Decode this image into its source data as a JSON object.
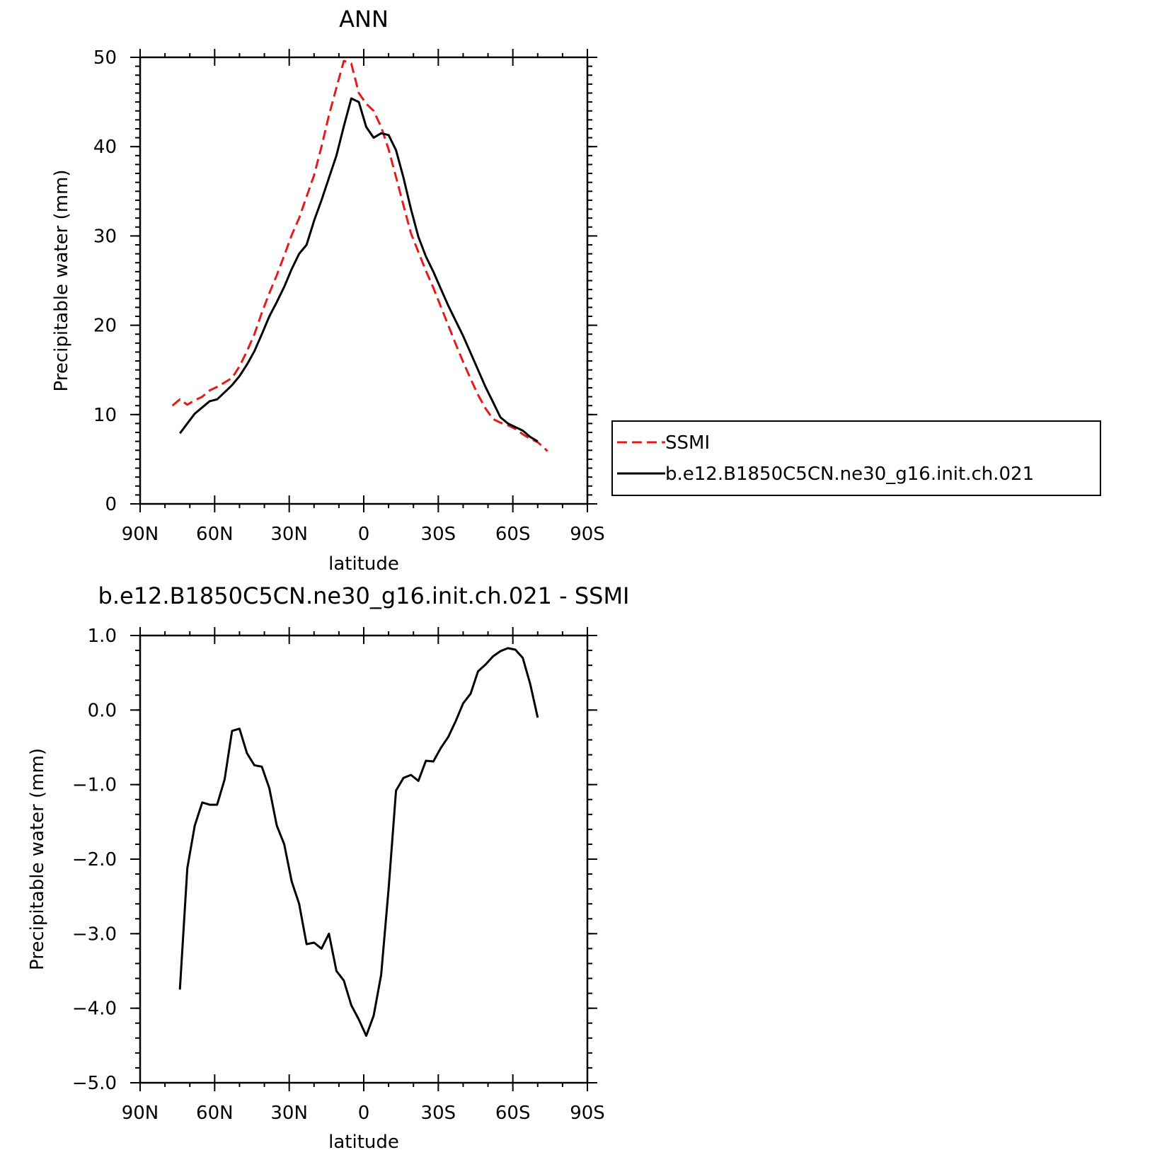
{
  "chart_data": [
    {
      "type": "line",
      "title": "ANN",
      "xlabel": "latitude",
      "ylabel": "Precipitable water (mm)",
      "xlim": [
        90,
        -90
      ],
      "ylim": [
        0,
        50
      ],
      "x_ticks": [
        90,
        60,
        30,
        0,
        -30,
        -60,
        -90
      ],
      "x_tick_labels": [
        "90N",
        "60N",
        "30N",
        "0",
        "30S",
        "60S",
        "90S"
      ],
      "y_ticks": [
        0,
        10,
        20,
        30,
        40,
        50
      ],
      "y_tick_labels": [
        "0",
        "10",
        "20",
        "30",
        "40",
        "50"
      ],
      "legend": "outside-right",
      "series": [
        {
          "name": "SSMI",
          "color": "#e41a1c",
          "style": "dashed",
          "x": [
            77,
            74,
            71,
            68,
            65,
            62,
            59,
            56,
            53,
            50,
            47,
            44,
            41,
            38,
            35,
            32,
            29,
            26,
            23,
            20,
            17,
            14,
            11,
            8,
            5,
            2,
            -1,
            -4,
            -7,
            -10,
            -13,
            -16,
            -19,
            -22,
            -25,
            -28,
            -31,
            -34,
            -37,
            -40,
            -43,
            -46,
            -49,
            -52,
            -55,
            -58,
            -61,
            -64,
            -67,
            -70,
            -74
          ],
          "values": [
            11.0,
            11.7,
            11.1,
            11.6,
            12.0,
            12.7,
            13.1,
            13.6,
            14.1,
            15.4,
            17.1,
            19.0,
            21.4,
            23.6,
            25.6,
            27.8,
            30.1,
            32.0,
            34.4,
            36.8,
            40.0,
            43.5,
            46.6,
            49.6,
            49.3,
            46.0,
            44.8,
            44.0,
            42.2,
            39.7,
            36.6,
            33.4,
            30.3,
            28.2,
            26.1,
            24.2,
            22.1,
            20.0,
            17.9,
            15.9,
            14.0,
            12.2,
            10.7,
            9.5,
            9.1,
            8.8,
            8.4,
            7.8,
            7.3,
            6.9,
            5.9
          ]
        },
        {
          "name": "b.e12.B1850C5CN.ne30_g16.init.ch.021",
          "color": "#000000",
          "style": "solid",
          "x": [
            74,
            71,
            68,
            65,
            62,
            59,
            56,
            53,
            50,
            47,
            44,
            41,
            38,
            35,
            32,
            29,
            26,
            23,
            20,
            17,
            14,
            11,
            8,
            5,
            2,
            -1,
            -4,
            -7,
            -10,
            -13,
            -16,
            -19,
            -22,
            -25,
            -28,
            -31,
            -34,
            -37,
            -40,
            -43,
            -46,
            -49,
            -52,
            -55,
            -58,
            -61,
            -64,
            -67,
            -70
          ],
          "values": [
            7.9,
            9.0,
            10.1,
            10.8,
            11.5,
            11.7,
            12.5,
            13.3,
            14.3,
            15.6,
            17.1,
            19.0,
            21.0,
            22.6,
            24.3,
            26.3,
            28.0,
            29.0,
            31.7,
            34.0,
            36.5,
            39.0,
            42.3,
            45.4,
            45.0,
            42.2,
            41.0,
            41.5,
            41.3,
            39.6,
            36.5,
            33.0,
            29.9,
            27.7,
            26.0,
            24.1,
            22.2,
            20.5,
            18.8,
            16.9,
            15.0,
            13.1,
            11.4,
            9.7,
            9.0,
            8.6,
            8.2,
            7.5,
            7.0
          ]
        }
      ]
    },
    {
      "type": "line",
      "title": "b.e12.B1850C5CN.ne30_g16.init.ch.021 - SSMI",
      "xlabel": "latitude",
      "ylabel": "Precipitable water (mm)",
      "xlim": [
        90,
        -90
      ],
      "ylim": [
        -5,
        1
      ],
      "x_ticks": [
        90,
        60,
        30,
        0,
        -30,
        -60,
        -90
      ],
      "x_tick_labels": [
        "90N",
        "60N",
        "30N",
        "0",
        "30S",
        "60S",
        "90S"
      ],
      "y_ticks": [
        1,
        0,
        -1,
        -2,
        -3,
        -4,
        -5
      ],
      "y_tick_labels": [
        "1.0",
        "0.0",
        "−1.0",
        "−2.0",
        "−3.0",
        "−4.0",
        "−5.0"
      ],
      "series": [
        {
          "color": "#000000",
          "style": "solid",
          "x": [
            74,
            71,
            68,
            65,
            62,
            59,
            56,
            53,
            50,
            47,
            44,
            41,
            38,
            35,
            32,
            29,
            26,
            23,
            20,
            17,
            14,
            11,
            8,
            5,
            2,
            -1,
            -4,
            -7,
            -10,
            -13,
            -16,
            -19,
            -22,
            -25,
            -28,
            -31,
            -34,
            -37,
            -40,
            -43,
            -46,
            -49,
            -52,
            -55,
            -58,
            -61,
            -64,
            -67,
            -70
          ],
          "values": [
            -3.75,
            -2.12,
            -1.55,
            -1.24,
            -1.27,
            -1.27,
            -0.93,
            -0.28,
            -0.25,
            -0.58,
            -0.74,
            -0.76,
            -1.05,
            -1.55,
            -1.8,
            -2.3,
            -2.6,
            -3.14,
            -3.12,
            -3.2,
            -3.0,
            -3.5,
            -3.63,
            -3.96,
            -4.15,
            -4.37,
            -4.1,
            -3.55,
            -2.4,
            -1.08,
            -0.91,
            -0.87,
            -0.95,
            -0.68,
            -0.69,
            -0.51,
            -0.36,
            -0.15,
            0.09,
            0.22,
            0.52,
            0.61,
            0.72,
            0.79,
            0.83,
            0.81,
            0.7,
            0.35,
            -0.1
          ]
        }
      ]
    }
  ]
}
